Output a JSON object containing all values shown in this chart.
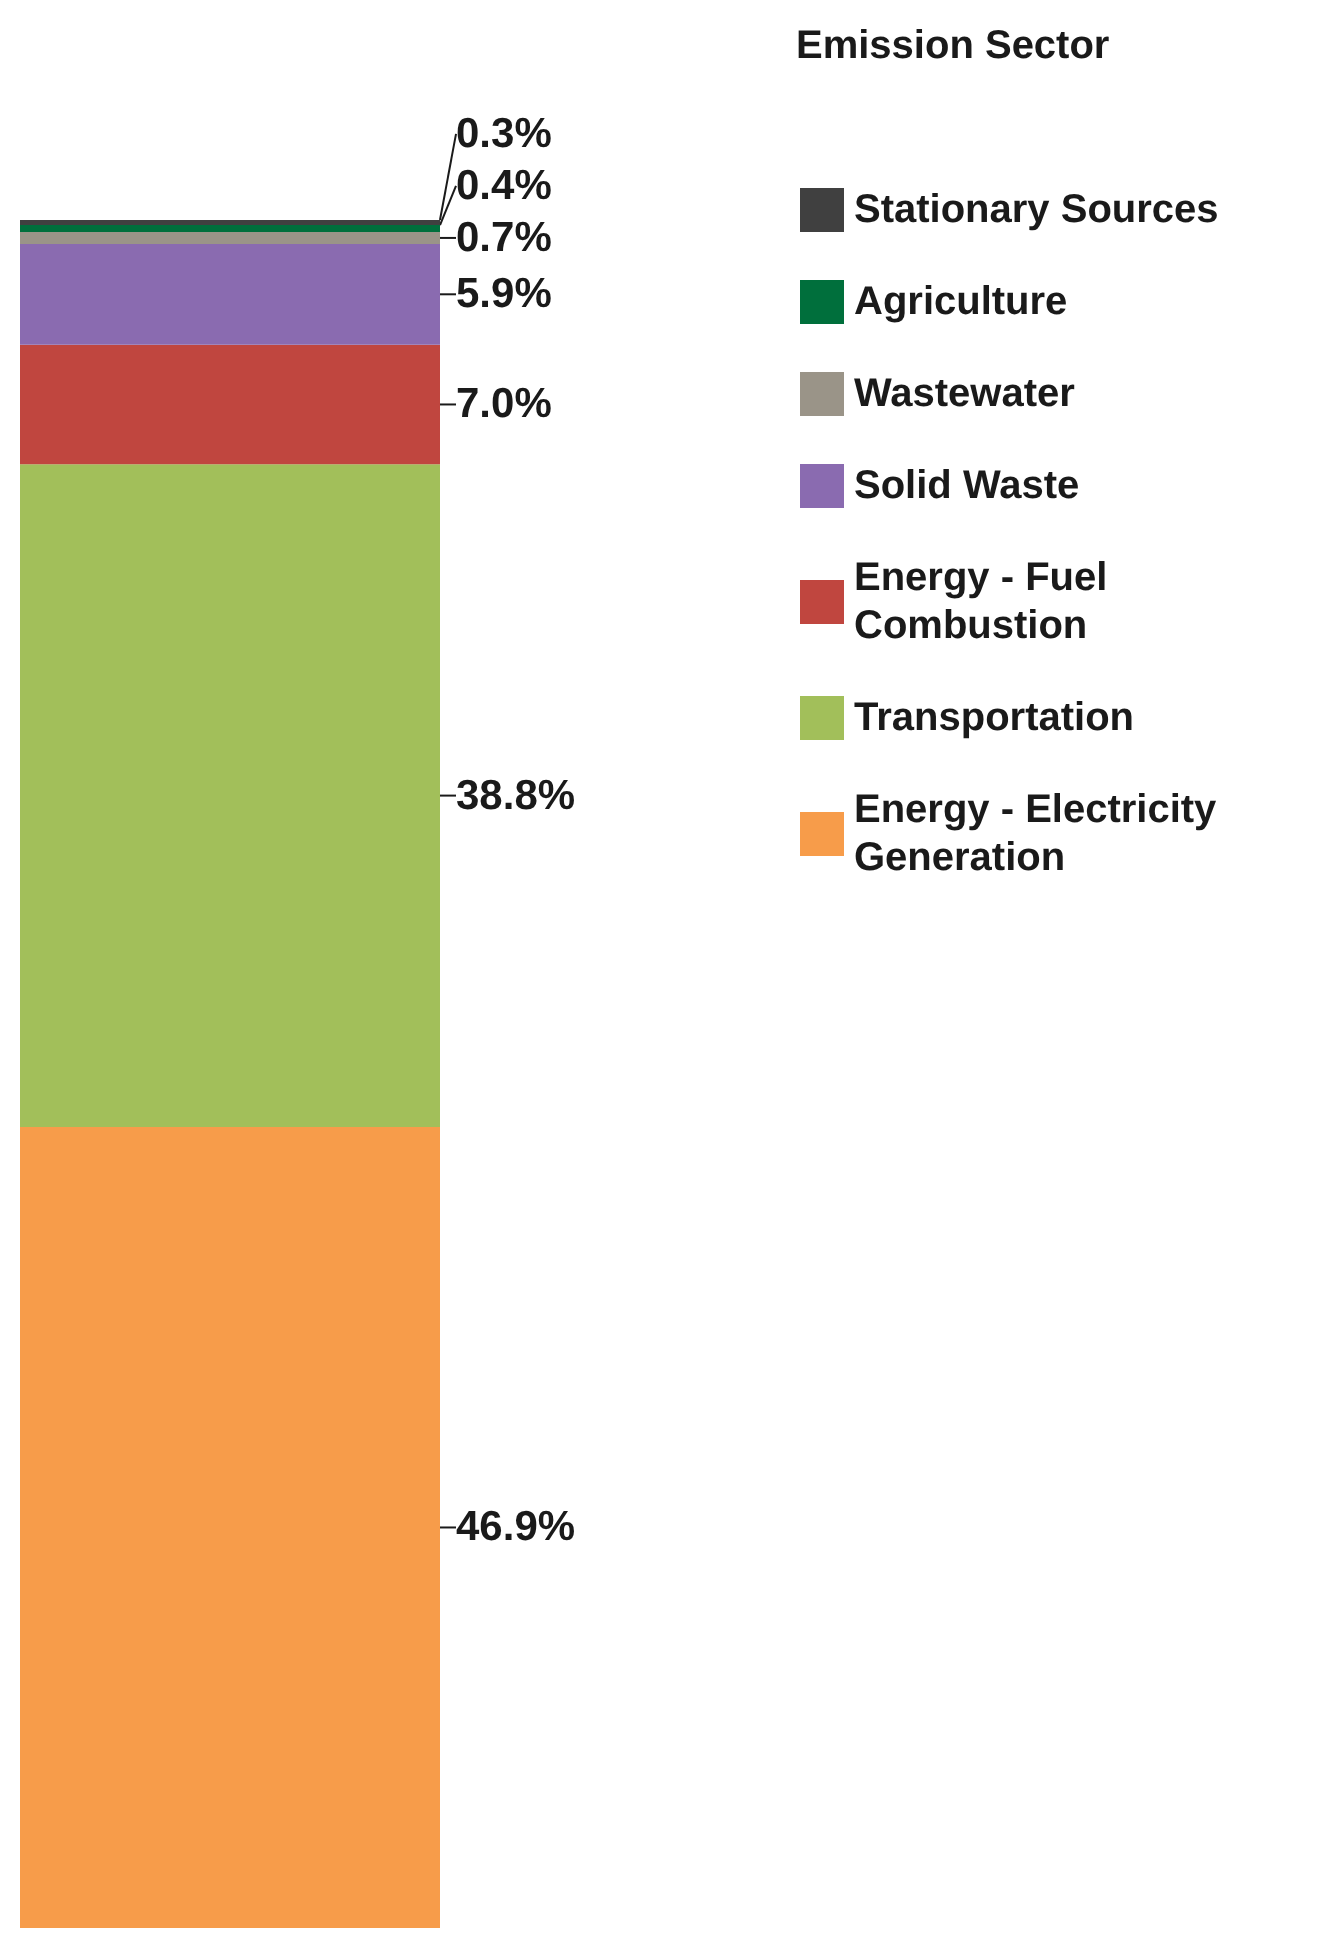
{
  "chart_data": {
    "type": "bar",
    "stacked": true,
    "categories": [
      null
    ],
    "legend": "top right",
    "legend_title": "Emission Sector",
    "series": [
      {
        "name": "Energy - Electricity Generation",
        "color": "#f79c4a",
        "values": [
          46.9
        ],
        "value_labels": [
          "46.9%"
        ]
      },
      {
        "name": "Transportation",
        "color": "#a2bf5a",
        "values": [
          38.8
        ],
        "value_labels": [
          "38.8%"
        ]
      },
      {
        "name": "Energy - Fuel Combustion",
        "color": "#c0463f",
        "values": [
          7.0
        ],
        "value_labels": [
          "7.0%"
        ]
      },
      {
        "name": "Solid Waste",
        "color": "#8a6bb0",
        "values": [
          5.9
        ],
        "value_labels": [
          "5.9%"
        ]
      },
      {
        "name": "Wastewater",
        "color": "#9a9488",
        "values": [
          0.7
        ],
        "value_labels": [
          "0.7%"
        ]
      },
      {
        "name": "Agriculture",
        "color": "#006f3c",
        "values": [
          0.4
        ],
        "value_labels": [
          "0.4%"
        ]
      },
      {
        "name": "Stationary Sources",
        "color": "#404040",
        "values": [
          0.3
        ],
        "value_labels": [
          "0.3%"
        ]
      }
    ]
  }
}
